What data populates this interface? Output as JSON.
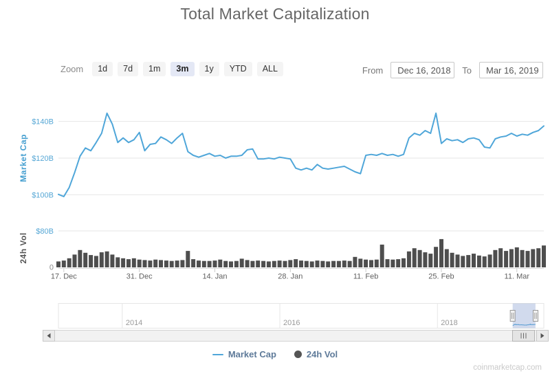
{
  "title": "Total Market Capitalization",
  "toolbar": {
    "zoom_label": "Zoom",
    "buttons": [
      "1d",
      "7d",
      "1m",
      "3m",
      "1y",
      "YTD",
      "ALL"
    ],
    "selected": "3m",
    "from_label": "From",
    "from_value": "Dec 16, 2018",
    "to_label": "To",
    "to_value": "Mar 16, 2019"
  },
  "colors": {
    "line": "#4fa6d9",
    "volume": "#4e4e4e",
    "axis_label_blue": "#56a7d5",
    "axis_title_blue": "#459fd0",
    "legend_text": "#5e7a99",
    "mask": "#6685c2",
    "selected_button_bg": "#e4e8f5"
  },
  "chart_data": [
    {
      "type": "line",
      "name": "Market Cap",
      "ylabel": "Market Cap",
      "x_start": "Dec 16, 2018",
      "x_end": "Mar 16, 2019",
      "interval": "daily",
      "ylim": [
        90,
        150
      ],
      "yticks": [
        {
          "label": "$100B",
          "value": 100
        },
        {
          "label": "$120B",
          "value": 120
        },
        {
          "label": "$140B",
          "value": 140
        }
      ],
      "xticks": [
        {
          "label": "17. Dec",
          "day": 1
        },
        {
          "label": "31. Dec",
          "day": 15
        },
        {
          "label": "14. Jan",
          "day": 29
        },
        {
          "label": "28. Jan",
          "day": 43
        },
        {
          "label": "11. Feb",
          "day": 57
        },
        {
          "label": "25. Feb",
          "day": 71
        },
        {
          "label": "11. Mar",
          "day": 85
        }
      ],
      "values": [
        100.2,
        99,
        104,
        112,
        121,
        125.5,
        124,
        128.5,
        133.5,
        144.5,
        138.5,
        128.5,
        131,
        128.5,
        130,
        134,
        124,
        127.5,
        128,
        131.5,
        130,
        128,
        131,
        133.5,
        123.5,
        121.5,
        120.5,
        121.5,
        122.5,
        121,
        121.5,
        120,
        121,
        121,
        121.5,
        124.5,
        125,
        119.5,
        119.5,
        120,
        119.5,
        120.5,
        120,
        119.5,
        114.5,
        113.5,
        114.5,
        113.5,
        116.5,
        114.5,
        114,
        114.5,
        115,
        115.5,
        114,
        112.5,
        111.5,
        121.5,
        122,
        121.5,
        122.5,
        121.5,
        122,
        121,
        122,
        131,
        133.5,
        132.5,
        135,
        133.5,
        144.5,
        128,
        130.5,
        129.5,
        130,
        128.5,
        130.5,
        131,
        130,
        126,
        125.5,
        130.5,
        131.5,
        132,
        133.5,
        132,
        133,
        132.5,
        134,
        135,
        137.5
      ]
    },
    {
      "type": "bar",
      "name": "24h Vol",
      "ylabel": "24h Vol",
      "ylim": [
        0,
        80
      ],
      "yticks": [
        {
          "label": "0",
          "value": 0
        },
        {
          "label": "$80B",
          "value": 80
        }
      ],
      "values": [
        13,
        15,
        20,
        28,
        38,
        32,
        27,
        25,
        33,
        35,
        28,
        22,
        20,
        18,
        20,
        17,
        16,
        15,
        17,
        16,
        15,
        14,
        15,
        16,
        36,
        18,
        15,
        14,
        14,
        15,
        17,
        14,
        13,
        14,
        19,
        16,
        14,
        15,
        14,
        13,
        14,
        15,
        14,
        16,
        18,
        15,
        14,
        13,
        15,
        14,
        13,
        14,
        14,
        15,
        14,
        23,
        19,
        17,
        16,
        17,
        50,
        18,
        17,
        18,
        20,
        35,
        42,
        38,
        33,
        30,
        45,
        62,
        40,
        32,
        28,
        25,
        27,
        30,
        26,
        24,
        28,
        38,
        42,
        36,
        40,
        44,
        38,
        36,
        40,
        42,
        48
      ]
    },
    {
      "type": "navigator",
      "xlim": [
        2013.19,
        2019.35
      ],
      "ylim": [
        0,
        830
      ],
      "year_ticks": [
        2014,
        2016,
        2018
      ],
      "year_labels": [
        "2014",
        "2016",
        "2018"
      ],
      "selection": [
        2018.955,
        2019.245
      ]
    }
  ],
  "legend": [
    {
      "label": "Market Cap",
      "symbol": "line",
      "color": "#4fa6d9"
    },
    {
      "label": "24h Vol",
      "symbol": "circle",
      "color": "#555555"
    }
  ],
  "watermark": "coinmarketcap.com"
}
